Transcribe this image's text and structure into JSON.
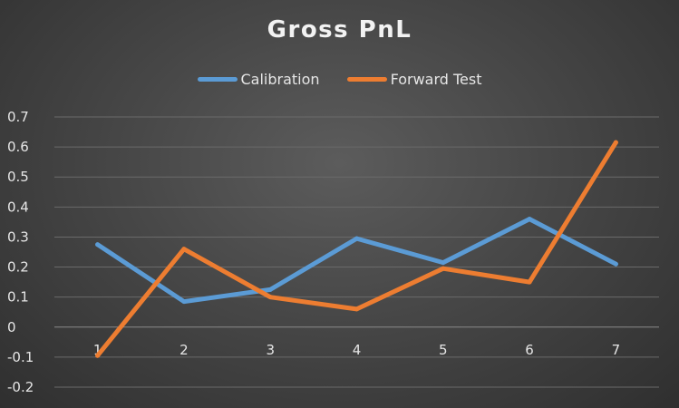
{
  "chart_data": {
    "type": "line",
    "title": "Gross PnL",
    "categories": [
      "1",
      "2",
      "3",
      "4",
      "5",
      "6",
      "7"
    ],
    "series": [
      {
        "name": "Calibration",
        "color": "#5b9bd5",
        "values": [
          0.275,
          0.085,
          0.125,
          0.295,
          0.215,
          0.36,
          0.21
        ]
      },
      {
        "name": "Forward Test",
        "color": "#ed7d31",
        "values": [
          -0.095,
          0.26,
          0.1,
          0.06,
          0.195,
          0.15,
          0.615
        ]
      }
    ],
    "ylim": [
      -0.2,
      0.7
    ],
    "yticks": [
      "0.7",
      "0.6",
      "0.5",
      "0.4",
      "0.3",
      "0.2",
      "0.1",
      "0",
      "-0.1",
      "-0.2"
    ],
    "xlabel": "",
    "ylabel": "",
    "grid": true,
    "legend_position": "top"
  }
}
